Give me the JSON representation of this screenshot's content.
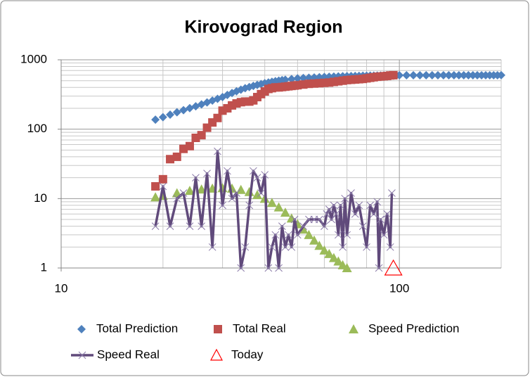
{
  "chart_data": {
    "type": "scatter",
    "title": "Kirovograd Region",
    "xscale": "log",
    "yscale": "log",
    "xlim": [
      10,
      200
    ],
    "ylim": [
      1,
      1000
    ],
    "xticks": [
      10,
      100
    ],
    "yticks": [
      1,
      10,
      100,
      1000
    ],
    "grid": true,
    "minor_grid": true,
    "legend": "bottom",
    "series": [
      {
        "name": "Total Prediction",
        "color": "#4f81bd",
        "marker": "diamond",
        "x": [
          19,
          20,
          21,
          22,
          23,
          24,
          25,
          26,
          27,
          28,
          29,
          30,
          31,
          32,
          33,
          34,
          35,
          36,
          37,
          38,
          39,
          40,
          41,
          42,
          43,
          44,
          45,
          46,
          48,
          50,
          52,
          54,
          56,
          58,
          60,
          62,
          64,
          66,
          68,
          70,
          72,
          74,
          76,
          78,
          80,
          82,
          84,
          86,
          88,
          90,
          92,
          94,
          96,
          98,
          100,
          105,
          110,
          115,
          120,
          125,
          130,
          135,
          140,
          145,
          150,
          155,
          160,
          165,
          170,
          175,
          180,
          185,
          190,
          195,
          200
        ],
        "values": [
          137,
          149,
          162,
          175,
          188,
          201,
          214,
          228,
          243,
          258,
          274,
          290,
          311,
          332,
          352,
          371,
          390,
          405,
          420,
          434,
          447,
          460,
          471,
          482,
          492,
          501,
          510,
          516,
          528,
          540,
          546,
          552,
          557,
          562,
          566,
          570,
          573,
          576,
          579,
          581,
          583,
          585,
          587,
          589,
          590,
          591,
          592,
          593,
          594,
          595,
          596,
          596,
          597,
          597,
          598,
          598,
          599,
          599,
          599,
          599,
          599,
          599,
          599,
          599,
          599,
          599,
          599,
          599,
          599,
          599,
          599,
          599,
          599,
          599,
          600
        ]
      },
      {
        "name": "Total Real",
        "color": "#c0504d",
        "marker": "square",
        "x": [
          19,
          20,
          21,
          22,
          23,
          24,
          25,
          26,
          27,
          28,
          29,
          30,
          31,
          32,
          33,
          34,
          35,
          36,
          37,
          38,
          39,
          40,
          41,
          42,
          43,
          44,
          45,
          46,
          47,
          48,
          49,
          50,
          52,
          54,
          56,
          58,
          60,
          62,
          64,
          66,
          68,
          70,
          72,
          74,
          76,
          78,
          80,
          82,
          84,
          86,
          88,
          90,
          92,
          94,
          96
        ],
        "values": [
          15,
          19,
          37,
          40,
          52,
          57,
          75,
          82,
          105,
          125,
          145,
          185,
          200,
          220,
          235,
          245,
          250,
          250,
          260,
          290,
          320,
          350,
          380,
          390,
          400,
          400,
          405,
          410,
          415,
          420,
          425,
          430,
          440,
          450,
          455,
          460,
          465,
          470,
          480,
          490,
          500,
          510,
          515,
          520,
          525,
          530,
          540,
          550,
          560,
          570,
          575,
          580,
          585,
          595,
          600
        ]
      },
      {
        "name": "Speed Prediction",
        "color": "#9bbb59",
        "marker": "triangle",
        "x": [
          19,
          20,
          22,
          24,
          26,
          28,
          30,
          32,
          34,
          36,
          38,
          40,
          42,
          44,
          46,
          48,
          50,
          52,
          54,
          56,
          58,
          60,
          62,
          64,
          66,
          68,
          70
        ],
        "values": [
          10.5,
          11,
          12,
          13,
          13.6,
          14,
          14.2,
          14,
          13.4,
          12.5,
          11.3,
          10,
          8.7,
          7.5,
          6.3,
          5.2,
          4.3,
          3.6,
          3,
          2.5,
          2.1,
          1.8,
          1.6,
          1.4,
          1.25,
          1.1,
          1
        ]
      },
      {
        "name": "Speed Real",
        "color": "#604a7b",
        "marker": "cross",
        "line": true,
        "x": [
          19,
          20,
          21,
          22,
          23,
          24,
          25,
          26,
          27,
          28,
          29,
          30,
          31,
          32,
          33,
          34,
          35,
          36,
          37,
          38,
          39,
          40,
          41,
          42,
          43,
          44,
          45,
          46,
          47,
          48,
          49,
          50,
          52,
          54,
          56,
          58,
          60,
          61,
          62,
          63,
          64,
          65,
          66,
          67,
          68,
          69,
          70,
          72,
          74,
          76,
          78,
          80,
          82,
          84,
          86,
          87,
          88,
          90,
          92,
          94,
          95
        ],
        "values": [
          4,
          15,
          4,
          10,
          12,
          4,
          20,
          4,
          23,
          2,
          48,
          8,
          25,
          10,
          12,
          1,
          2,
          8,
          25,
          20,
          12,
          22,
          1,
          2,
          3,
          1,
          4,
          2,
          3,
          2,
          5,
          3,
          4,
          5,
          5,
          5,
          4,
          6,
          7,
          5,
          8,
          6,
          3,
          8,
          2,
          10,
          3,
          12,
          6,
          8,
          4,
          2,
          8,
          6,
          9,
          1,
          5,
          3,
          6,
          2,
          12
        ]
      },
      {
        "name": "Today",
        "color": "#ff0000",
        "marker": "open-triangle",
        "x": [
          96
        ],
        "values": [
          1
        ]
      }
    ]
  }
}
